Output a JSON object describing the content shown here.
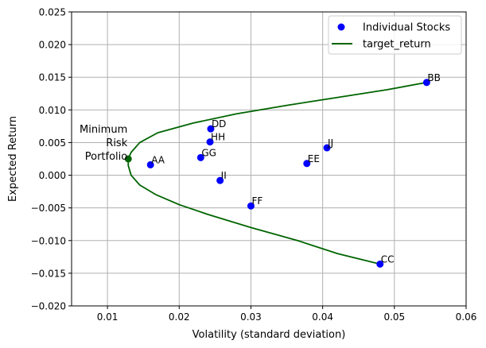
{
  "chart_data": {
    "type": "scatter",
    "title": "",
    "xlabel": "Volatility (standard deviation)",
    "ylabel": "Expected Return",
    "xlim": [
      0.005,
      0.06
    ],
    "ylim": [
      -0.02,
      0.025
    ],
    "xticks": [
      0.01,
      0.02,
      0.03,
      0.04,
      0.05,
      0.06
    ],
    "xtick_labels": [
      "0.01",
      "0.02",
      "0.03",
      "0.04",
      "0.05",
      "0.06"
    ],
    "yticks": [
      -0.02,
      -0.015,
      -0.01,
      -0.005,
      0.0,
      0.005,
      0.01,
      0.015,
      0.02,
      0.025
    ],
    "ytick_labels": [
      "−0.020",
      "−0.015",
      "−0.010",
      "−0.005",
      "0.000",
      "0.005",
      "0.010",
      "0.015",
      "0.020",
      "0.025"
    ],
    "grid": true,
    "legend": {
      "placement": "top-right",
      "entries": [
        "Individual Stocks",
        "target_return"
      ]
    },
    "colors": {
      "stocks": "#0000ff",
      "frontier": "#006400",
      "min_risk": "#006400",
      "grid": "#b0b0b0"
    },
    "series": [
      {
        "name": "Individual Stocks",
        "kind": "scatter",
        "points": [
          {
            "label": "AA",
            "x": 0.016,
            "y": 0.0016
          },
          {
            "label": "BB",
            "x": 0.0545,
            "y": 0.0142
          },
          {
            "label": "CC",
            "x": 0.048,
            "y": -0.0136
          },
          {
            "label": "DD",
            "x": 0.0244,
            "y": 0.0071
          },
          {
            "label": "EE",
            "x": 0.0378,
            "y": 0.0018
          },
          {
            "label": "FF",
            "x": 0.03,
            "y": -0.0047
          },
          {
            "label": "GG",
            "x": 0.023,
            "y": 0.0027
          },
          {
            "label": "HH",
            "x": 0.0243,
            "y": 0.0051
          },
          {
            "label": "II",
            "x": 0.0257,
            "y": -0.0008
          },
          {
            "label": "JJ",
            "x": 0.0406,
            "y": 0.0042
          }
        ]
      },
      {
        "name": "target_return",
        "kind": "line",
        "points": [
          {
            "x": 0.048,
            "y": -0.0136
          },
          {
            "x": 0.0421,
            "y": -0.012
          },
          {
            "x": 0.0365,
            "y": -0.01
          },
          {
            "x": 0.03,
            "y": -0.008
          },
          {
            "x": 0.024,
            "y": -0.006
          },
          {
            "x": 0.02,
            "y": -0.0045
          },
          {
            "x": 0.0168,
            "y": -0.003
          },
          {
            "x": 0.0145,
            "y": -0.0015
          },
          {
            "x": 0.0133,
            "y": 0.0
          },
          {
            "x": 0.0129,
            "y": 0.0015
          },
          {
            "x": 0.0129,
            "y": 0.0025
          },
          {
            "x": 0.0133,
            "y": 0.0035
          },
          {
            "x": 0.0145,
            "y": 0.005
          },
          {
            "x": 0.017,
            "y": 0.0065
          },
          {
            "x": 0.022,
            "y": 0.008
          },
          {
            "x": 0.028,
            "y": 0.0094
          },
          {
            "x": 0.035,
            "y": 0.0107
          },
          {
            "x": 0.042,
            "y": 0.0119
          },
          {
            "x": 0.049,
            "y": 0.0131
          },
          {
            "x": 0.0545,
            "y": 0.0142
          }
        ]
      }
    ],
    "min_risk_portfolio": {
      "label_lines": [
        "Minimum",
        "Risk",
        "Portfolio"
      ],
      "x": 0.0129,
      "y": 0.0025
    }
  }
}
